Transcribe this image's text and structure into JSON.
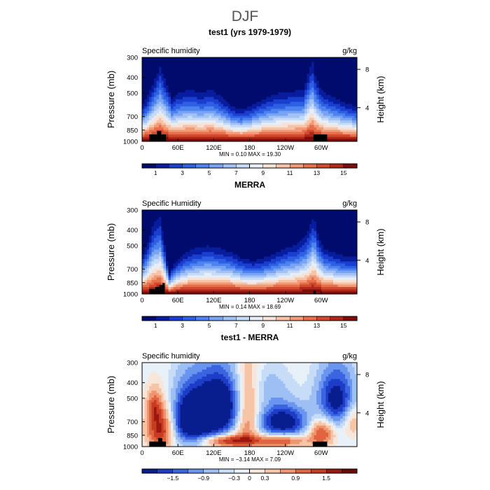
{
  "page": {
    "title": "DJF"
  },
  "colors": {
    "humidity_scale": [
      "#000b6e",
      "#081d9e",
      "#1a3fd0",
      "#2e60e4",
      "#4e82ee",
      "#78a4f3",
      "#a2c2f6",
      "#c6dbf8",
      "#e6eef8",
      "#f6e2d6",
      "#f7c3a7",
      "#f29a76",
      "#e6704b",
      "#d24a2d",
      "#b0281a",
      "#7c0d0a"
    ],
    "diff_scale": [
      "#081d8e",
      "#1d3cc8",
      "#3a64e0",
      "#6a95ee",
      "#9dbff4",
      "#c6dcf7",
      "#e8f0f8",
      "#f8e6da",
      "#f6c4a6",
      "#ef9670",
      "#e0643f",
      "#c63b22",
      "#9c180e",
      "#6e0608"
    ],
    "orography": "#000000"
  },
  "chart_data": [
    {
      "type": "heatmap",
      "title": "test1 (yrs 1979-1979)",
      "left_label": "Specific humidity",
      "units": "g/kg",
      "ylabel": "Pressure (mb)",
      "ylabel_right": "Height (km)",
      "x_tick_labels": [
        "0",
        "60E",
        "120E",
        "180",
        "120W",
        "60W"
      ],
      "x_ticks_lon": [
        0,
        60,
        120,
        180,
        240,
        300
      ],
      "xlim": [
        0,
        360
      ],
      "y_tick_labels": [
        "300",
        "400",
        "500",
        "700",
        "850",
        "1000"
      ],
      "y_ticks_mb": [
        300,
        400,
        500,
        700,
        850,
        1000
      ],
      "ylim_mb": [
        1000,
        300
      ],
      "right_tick_labels": [
        "8",
        "4"
      ],
      "right_ticks_km": [
        8,
        4
      ],
      "stats": "MIN =     0.10   MAX =    19.30",
      "min": 0.1,
      "max": 19.3,
      "colorbar_labels": [
        "1",
        "3",
        "5",
        "7",
        "9",
        "11",
        "13",
        "15"
      ],
      "colorbar_levels": [
        1,
        3,
        5,
        7,
        9,
        11,
        13,
        15
      ],
      "colorbar_range": [
        0,
        16
      ],
      "lon_profile": {
        "lon": [
          0,
          10,
          20,
          30,
          38,
          50,
          60,
          80,
          100,
          115,
          130,
          150,
          165,
          180,
          200,
          215,
          230,
          250,
          270,
          285,
          290,
          300,
          315,
          330,
          345,
          360
        ],
        "level": [
          0.42,
          0.55,
          0.72,
          0.9,
          0.75,
          0.52,
          0.58,
          0.62,
          0.58,
          0.62,
          0.55,
          0.42,
          0.38,
          0.42,
          0.5,
          0.55,
          0.58,
          0.6,
          0.62,
          0.98,
          0.8,
          0.62,
          0.55,
          0.5,
          0.45,
          0.42
        ]
      },
      "orography": [
        {
          "lon0": 12,
          "lon1": 25,
          "p": 905
        },
        {
          "lon0": 25,
          "lon1": 32,
          "p": 860
        },
        {
          "lon0": 32,
          "lon1": 40,
          "p": 905
        },
        {
          "lon0": 287,
          "lon1": 310,
          "p": 905
        }
      ]
    },
    {
      "type": "heatmap",
      "title": "MERRA",
      "left_label": "Specific Humidity",
      "units": "g/kg",
      "ylabel": "Pressure (mb)",
      "ylabel_right": "Height (km)",
      "x_tick_labels": [
        "0",
        "60E",
        "120E",
        "180",
        "120W",
        "60W"
      ],
      "x_ticks_lon": [
        0,
        60,
        120,
        180,
        240,
        300
      ],
      "xlim": [
        0,
        360
      ],
      "y_tick_labels": [
        "300",
        "400",
        "500",
        "700",
        "850",
        "1000"
      ],
      "y_ticks_mb": [
        300,
        400,
        500,
        700,
        850,
        1000
      ],
      "ylim_mb": [
        1000,
        300
      ],
      "right_tick_labels": [
        "8",
        "4"
      ],
      "right_ticks_km": [
        8,
        4
      ],
      "stats": "MIN =     0.14   MAX =    18.69",
      "min": 0.14,
      "max": 18.69,
      "colorbar_labels": [
        "1",
        "3",
        "5",
        "7",
        "9",
        "11",
        "13",
        "15"
      ],
      "colorbar_levels": [
        1,
        3,
        5,
        7,
        9,
        11,
        13,
        15
      ],
      "colorbar_range": [
        0,
        16
      ],
      "lon_profile": {
        "lon": [
          0,
          10,
          20,
          30,
          38,
          45,
          55,
          70,
          90,
          110,
          130,
          150,
          170,
          185,
          200,
          220,
          240,
          260,
          275,
          288,
          295,
          305,
          320,
          340,
          360
        ],
        "level": [
          0.45,
          0.62,
          0.85,
          0.92,
          0.58,
          0.25,
          0.38,
          0.48,
          0.55,
          0.58,
          0.55,
          0.5,
          0.42,
          0.4,
          0.42,
          0.48,
          0.55,
          0.6,
          0.7,
          0.95,
          0.7,
          0.55,
          0.5,
          0.45,
          0.45
        ]
      },
      "orography": [
        {
          "lon0": 12,
          "lon1": 22,
          "p": 930
        },
        {
          "lon0": 22,
          "lon1": 29,
          "p": 905
        },
        {
          "lon0": 29,
          "lon1": 34,
          "p": 880
        },
        {
          "lon0": 34,
          "lon1": 38,
          "p": 855
        },
        {
          "lon0": 287,
          "lon1": 291,
          "p": 955
        }
      ]
    },
    {
      "type": "heatmap",
      "title": "test1 - MERRA",
      "left_label": "Specific humidity",
      "units": "g/kg",
      "ylabel": "Pressure (mb)",
      "ylabel_right": "Height (km)",
      "x_tick_labels": [
        "0",
        "60E",
        "120E",
        "180",
        "120W",
        "60W"
      ],
      "x_ticks_lon": [
        0,
        60,
        120,
        180,
        240,
        300
      ],
      "xlim": [
        0,
        360
      ],
      "y_tick_labels": [
        "300",
        "400",
        "500",
        "700",
        "850",
        "1000"
      ],
      "y_ticks_mb": [
        300,
        400,
        500,
        700,
        850,
        1000
      ],
      "ylim_mb": [
        1000,
        300
      ],
      "right_tick_labels": [
        "8",
        "4"
      ],
      "right_ticks_km": [
        8,
        4
      ],
      "stats": "MIN =    −3.14   MAX =     7.09",
      "min": -3.14,
      "max": 7.09,
      "colorbar_labels": [
        "−1.5",
        "−0.9",
        "−0.3",
        "0",
        "0.3",
        "0.9",
        "1.5"
      ],
      "colorbar_levels": [
        -1.5,
        -0.9,
        -0.3,
        0,
        0.3,
        0.9,
        1.5
      ],
      "colorbar_range": [
        -2.1,
        2.1
      ],
      "diff_features": [
        {
          "lon": 30,
          "p": 780,
          "wlon": 22,
          "hmb": 240,
          "amp": 1.6
        },
        {
          "lon": 20,
          "p": 560,
          "wlon": 12,
          "hmb": 130,
          "amp": 0.9
        },
        {
          "lon": 75,
          "p": 650,
          "wlon": 26,
          "hmb": 260,
          "amp": -1.5
        },
        {
          "lon": 125,
          "p": 560,
          "wlon": 42,
          "hmb": 240,
          "amp": -2.6
        },
        {
          "lon": 100,
          "p": 780,
          "wlon": 35,
          "hmb": 180,
          "amp": -0.9
        },
        {
          "lon": 175,
          "p": 640,
          "wlon": 22,
          "hmb": 360,
          "amp": 1.3
        },
        {
          "lon": 140,
          "p": 920,
          "wlon": 40,
          "hmb": 80,
          "amp": 1.6
        },
        {
          "lon": 235,
          "p": 700,
          "wlon": 40,
          "hmb": 160,
          "amp": -2.0
        },
        {
          "lon": 230,
          "p": 920,
          "wlon": 45,
          "hmb": 80,
          "amp": 1.4
        },
        {
          "lon": 300,
          "p": 820,
          "wlon": 20,
          "hmb": 160,
          "amp": 1.3
        },
        {
          "lon": 325,
          "p": 500,
          "wlon": 30,
          "hmb": 200,
          "amp": -1.8
        },
        {
          "lon": 352,
          "p": 680,
          "wlon": 14,
          "hmb": 160,
          "amp": 0.7
        },
        {
          "lon": 215,
          "p": 420,
          "wlon": 30,
          "hmb": 120,
          "amp": -0.4
        }
      ],
      "orography": [
        {
          "lon0": 12,
          "lon1": 27,
          "p": 930
        },
        {
          "lon0": 27,
          "lon1": 34,
          "p": 885
        },
        {
          "lon0": 34,
          "lon1": 40,
          "p": 930
        },
        {
          "lon0": 286,
          "lon1": 310,
          "p": 930
        }
      ]
    }
  ]
}
